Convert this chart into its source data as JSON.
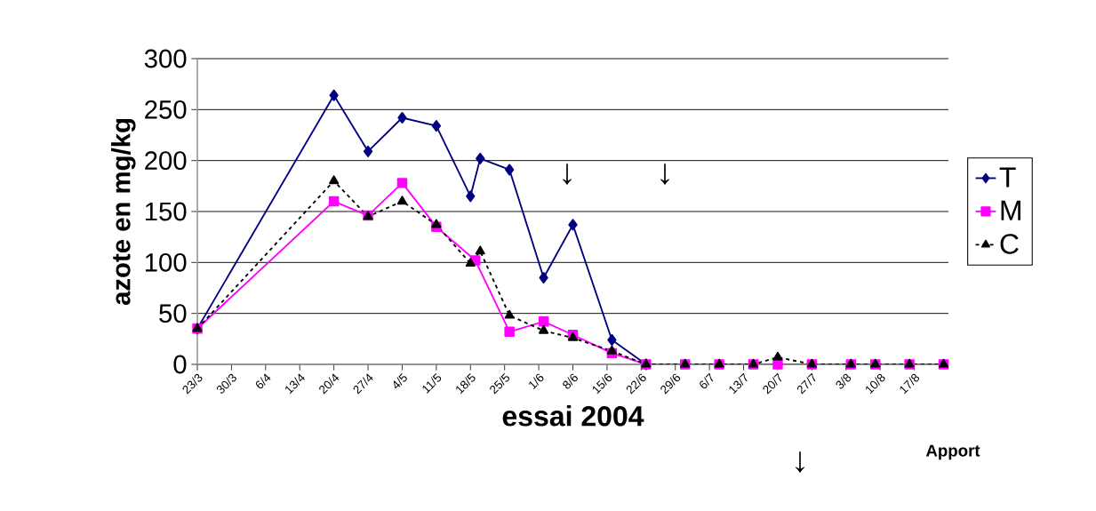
{
  "chart_data": {
    "type": "line",
    "xlabel": "essai 2004",
    "ylabel": "azote en mg/kg",
    "xlim": [
      "2004-03-23",
      "2004-08-24"
    ],
    "ylim": [
      0,
      300
    ],
    "yticks": [
      0,
      50,
      100,
      150,
      200,
      250,
      300
    ],
    "xticks": [
      {
        "value": "2004-03-23",
        "label": "23/3"
      },
      {
        "value": "2004-03-30",
        "label": "30/3"
      },
      {
        "value": "2004-04-06",
        "label": "6/4"
      },
      {
        "value": "2004-04-13",
        "label": "13/4"
      },
      {
        "value": "2004-04-20",
        "label": "20/4"
      },
      {
        "value": "2004-04-27",
        "label": "27/4"
      },
      {
        "value": "2004-05-04",
        "label": "4/5"
      },
      {
        "value": "2004-05-11",
        "label": "11/5"
      },
      {
        "value": "2004-05-18",
        "label": "18/5"
      },
      {
        "value": "2004-05-25",
        "label": "25/5"
      },
      {
        "value": "2004-06-01",
        "label": "1/6"
      },
      {
        "value": "2004-06-08",
        "label": "8/6"
      },
      {
        "value": "2004-06-15",
        "label": "15/6"
      },
      {
        "value": "2004-06-22",
        "label": "22/6"
      },
      {
        "value": "2004-06-29",
        "label": "29/6"
      },
      {
        "value": "2004-07-06",
        "label": "6/7"
      },
      {
        "value": "2004-07-13",
        "label": "13/7"
      },
      {
        "value": "2004-07-20",
        "label": "20/7"
      },
      {
        "value": "2004-07-27",
        "label": "27/7"
      },
      {
        "value": "2004-08-03",
        "label": "3/8"
      },
      {
        "value": "2004-08-10",
        "label": "10/8"
      },
      {
        "value": "2004-08-17",
        "label": "17/8"
      }
    ],
    "grid": "y",
    "legend": "right",
    "series": [
      {
        "name": "T",
        "color": "#000080",
        "marker": "diamond",
        "line_style": "solid",
        "x": [
          "2004-03-23",
          "2004-04-20",
          "2004-04-27",
          "2004-05-04",
          "2004-05-11",
          "2004-05-18",
          "2004-05-20",
          "2004-05-26",
          "2004-06-02",
          "2004-06-08",
          "2004-06-16",
          "2004-06-23"
        ],
        "values": [
          35,
          264,
          209,
          242,
          234,
          165,
          202,
          191,
          85,
          137,
          24,
          0
        ]
      },
      {
        "name": "M",
        "color": "#ff00ff",
        "marker": "square",
        "line_style": "solid",
        "x": [
          "2004-03-23",
          "2004-04-20",
          "2004-04-27",
          "2004-05-04",
          "2004-05-11",
          "2004-05-19",
          "2004-05-26",
          "2004-06-02",
          "2004-06-08",
          "2004-06-16",
          "2004-06-23",
          "2004-07-01",
          "2004-07-08",
          "2004-07-15",
          "2004-07-20",
          "2004-07-27",
          "2004-08-04",
          "2004-08-09",
          "2004-08-16",
          "2004-08-23"
        ],
        "values": [
          35,
          160,
          146,
          178,
          135,
          102,
          32,
          42,
          29,
          11,
          0,
          0,
          0,
          0,
          0,
          0,
          0,
          0,
          0,
          0
        ]
      },
      {
        "name": "C",
        "color": "#000000",
        "marker": "triangle",
        "line_style": "dashed",
        "x": [
          "2004-03-23",
          "2004-04-20",
          "2004-04-27",
          "2004-05-04",
          "2004-05-11",
          "2004-05-18",
          "2004-05-20",
          "2004-05-26",
          "2004-06-02",
          "2004-06-08",
          "2004-06-16",
          "2004-06-23",
          "2004-07-01",
          "2004-07-08",
          "2004-07-15",
          "2004-07-20",
          "2004-07-27",
          "2004-08-04",
          "2004-08-09",
          "2004-08-16",
          "2004-08-23"
        ],
        "values": [
          35,
          180,
          145,
          160,
          137,
          99,
          111,
          48,
          33,
          26,
          13,
          0,
          0,
          0,
          0,
          7,
          0,
          0,
          0,
          0,
          0
        ]
      }
    ],
    "annotations": [
      "↓",
      "↓",
      "↓",
      "Apport"
    ]
  }
}
